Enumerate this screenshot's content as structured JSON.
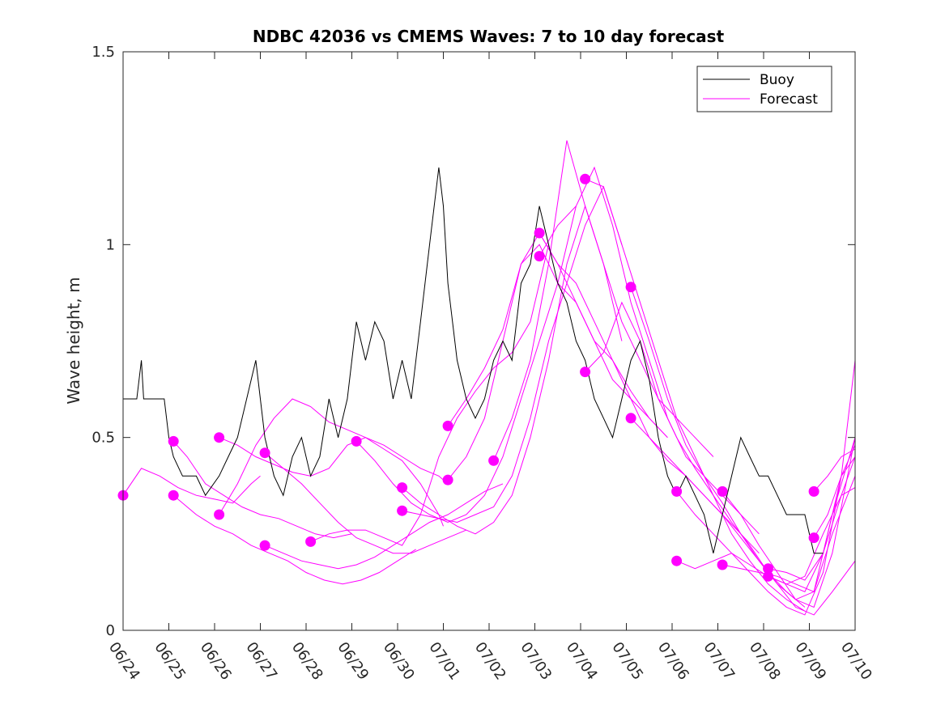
{
  "chart_data": {
    "type": "line",
    "title": "NDBC 42036 vs CMEMS Waves: 7 to 10 day forecast",
    "xlabel": "",
    "ylabel": "Wave height, m",
    "xlim_days": [
      0,
      16
    ],
    "x_tick_labels": [
      "06/24",
      "06/25",
      "06/26",
      "06/27",
      "06/28",
      "06/29",
      "06/30",
      "07/01",
      "07/02",
      "07/03",
      "07/04",
      "07/05",
      "07/06",
      "07/07",
      "07/08",
      "07/09",
      "07/10"
    ],
    "ylim": [
      0,
      1.5
    ],
    "y_ticks": [
      0,
      0.5,
      1,
      1.5
    ],
    "y_tick_labels": [
      "0",
      "0.5",
      "1",
      "1.5"
    ],
    "grid": false,
    "legend_position": "top-right",
    "colors": {
      "buoy": "#000000",
      "forecast": "#ff00ff"
    },
    "legend": [
      {
        "label": "Buoy",
        "color": "#000000"
      },
      {
        "label": "Forecast",
        "color": "#ff00ff"
      }
    ],
    "series": [
      {
        "name": "Buoy",
        "x": [
          0,
          0.3,
          0.4,
          0.45,
          0.6,
          0.75,
          0.9,
          1.0,
          1.1,
          1.3,
          1.4,
          1.6,
          1.8,
          2.1,
          2.3,
          2.5,
          2.7,
          2.9,
          3.1,
          3.3,
          3.5,
          3.7,
          3.9,
          4.1,
          4.3,
          4.5,
          4.7,
          4.9,
          5.1,
          5.3,
          5.5,
          5.7,
          5.9,
          6.1,
          6.3,
          6.5,
          6.7,
          6.9,
          7.0,
          7.1,
          7.3,
          7.5,
          7.7,
          7.9,
          8.1,
          8.3,
          8.5,
          8.7,
          8.9,
          9.1,
          9.3,
          9.5,
          9.7,
          9.9,
          10.1,
          10.3,
          10.5,
          10.7,
          10.9,
          11.1,
          11.3,
          11.5,
          11.7,
          11.9,
          12.1,
          12.3,
          12.5,
          12.7,
          12.9,
          13.1,
          13.3,
          13.5,
          13.7,
          13.9,
          14.1,
          14.3,
          14.5,
          14.7,
          14.9,
          15.1,
          15.3
        ],
        "y": [
          0.6,
          0.6,
          0.7,
          0.6,
          0.6,
          0.6,
          0.6,
          0.5,
          0.45,
          0.4,
          0.4,
          0.4,
          0.35,
          0.4,
          0.45,
          0.5,
          0.6,
          0.7,
          0.5,
          0.4,
          0.35,
          0.45,
          0.5,
          0.4,
          0.45,
          0.6,
          0.5,
          0.6,
          0.8,
          0.7,
          0.8,
          0.75,
          0.6,
          0.7,
          0.6,
          0.8,
          1.0,
          1.2,
          1.1,
          0.9,
          0.7,
          0.6,
          0.55,
          0.6,
          0.7,
          0.75,
          0.7,
          0.9,
          0.95,
          1.1,
          1.0,
          0.9,
          0.85,
          0.75,
          0.7,
          0.6,
          0.55,
          0.5,
          0.6,
          0.7,
          0.75,
          0.65,
          0.5,
          0.4,
          0.35,
          0.4,
          0.35,
          0.3,
          0.2,
          0.3,
          0.4,
          0.5,
          0.45,
          0.4,
          0.4,
          0.35,
          0.3,
          0.3,
          0.3,
          0.2,
          0.2
        ]
      },
      {
        "name": "Forecast",
        "x": [
          0,
          0.4,
          0.8,
          1.2,
          1.6,
          2.0,
          2.4,
          2.8,
          3.0
        ],
        "y": [
          0.35,
          0.42,
          0.4,
          0.37,
          0.35,
          0.34,
          0.33,
          0.38,
          0.4
        ],
        "marker_x": 0,
        "marker_y": 0.35
      },
      {
        "name": "Forecast",
        "x": [
          1.1,
          1.4,
          1.8,
          2.2,
          2.6,
          3.0,
          3.4,
          3.8,
          4.2,
          4.6,
          5.0
        ],
        "y": [
          0.49,
          0.45,
          0.38,
          0.35,
          0.32,
          0.3,
          0.29,
          0.27,
          0.25,
          0.24,
          0.25
        ],
        "marker_x": 1.1,
        "marker_y": 0.49
      },
      {
        "name": "Forecast",
        "x": [
          1.1,
          1.6,
          2.0,
          2.4,
          2.8,
          3.2,
          3.6,
          4.0,
          4.4,
          4.8,
          5.2,
          5.6,
          6.0,
          6.4
        ],
        "y": [
          0.35,
          0.3,
          0.27,
          0.25,
          0.22,
          0.2,
          0.18,
          0.15,
          0.13,
          0.12,
          0.13,
          0.15,
          0.18,
          0.21
        ],
        "marker_x": 1.1,
        "marker_y": 0.35
      },
      {
        "name": "Forecast",
        "x": [
          2.1,
          2.5,
          2.9,
          3.3,
          3.7,
          4.1,
          4.5,
          4.9,
          5.3,
          5.7,
          6.1,
          6.5,
          6.9,
          7.0
        ],
        "y": [
          0.5,
          0.48,
          0.45,
          0.43,
          0.41,
          0.4,
          0.42,
          0.48,
          0.5,
          0.47,
          0.44,
          0.38,
          0.3,
          0.27
        ],
        "marker_x": 2.1,
        "marker_y": 0.5
      },
      {
        "name": "Forecast",
        "x": [
          2.1,
          2.5,
          2.9,
          3.3,
          3.7,
          4.1,
          4.5,
          4.9,
          5.3,
          5.7,
          6.1,
          6.5,
          6.9,
          7.0
        ],
        "y": [
          0.3,
          0.38,
          0.48,
          0.55,
          0.6,
          0.58,
          0.54,
          0.52,
          0.5,
          0.48,
          0.45,
          0.42,
          0.4,
          0.39
        ],
        "marker_x": 2.1,
        "marker_y": 0.3
      },
      {
        "name": "Forecast",
        "x": [
          3.1,
          3.5,
          3.9,
          4.3,
          4.7,
          5.1,
          5.5,
          5.9,
          6.3,
          6.7,
          7.1,
          7.5
        ],
        "y": [
          0.46,
          0.42,
          0.38,
          0.33,
          0.28,
          0.24,
          0.22,
          0.2,
          0.2,
          0.22,
          0.24,
          0.26
        ],
        "marker_x": 3.1,
        "marker_y": 0.46
      },
      {
        "name": "Forecast",
        "x": [
          3.1,
          3.5,
          3.9,
          4.3,
          4.7,
          5.1,
          5.5,
          5.9,
          6.3,
          6.7,
          7.1,
          7.5,
          7.9,
          8.3
        ],
        "y": [
          0.22,
          0.2,
          0.18,
          0.17,
          0.16,
          0.17,
          0.19,
          0.22,
          0.25,
          0.28,
          0.3,
          0.33,
          0.36,
          0.38
        ],
        "marker_x": 3.1,
        "marker_y": 0.22
      },
      {
        "name": "Forecast",
        "x": [
          4.1,
          4.5,
          4.9,
          5.3,
          5.7,
          6.1,
          6.5,
          6.9,
          7.3,
          7.7,
          8.1,
          8.5,
          8.9,
          9.3
        ],
        "y": [
          0.23,
          0.25,
          0.26,
          0.26,
          0.24,
          0.22,
          0.3,
          0.45,
          0.55,
          0.62,
          0.68,
          0.72,
          0.8,
          1.0
        ],
        "marker_x": 4.1,
        "marker_y": 0.23
      },
      {
        "name": "Forecast",
        "x": [
          5.1,
          5.5,
          5.9,
          6.3,
          6.7,
          7.1,
          7.5,
          7.9,
          8.3,
          8.7,
          9.1,
          9.5,
          9.9
        ],
        "y": [
          0.49,
          0.44,
          0.38,
          0.33,
          0.3,
          0.28,
          0.3,
          0.35,
          0.45,
          0.6,
          0.75,
          0.9,
          1.1
        ],
        "marker_x": 5.1,
        "marker_y": 0.49
      },
      {
        "name": "Forecast",
        "x": [
          6.1,
          6.5,
          6.9,
          7.3,
          7.7,
          8.1,
          8.5,
          8.9,
          9.3,
          9.7,
          10.1,
          10.5,
          10.9
        ],
        "y": [
          0.37,
          0.33,
          0.3,
          0.27,
          0.25,
          0.28,
          0.35,
          0.5,
          0.7,
          0.95,
          1.1,
          0.95,
          0.75
        ],
        "marker_x": 6.1,
        "marker_y": 0.37
      },
      {
        "name": "Forecast",
        "x": [
          6.1,
          6.5,
          6.9,
          7.3,
          7.7,
          8.1,
          8.5,
          8.9,
          9.3,
          9.7,
          10.1,
          10.5,
          10.9
        ],
        "y": [
          0.31,
          0.3,
          0.29,
          0.28,
          0.3,
          0.32,
          0.4,
          0.55,
          0.75,
          0.9,
          1.05,
          1.15,
          1.0
        ],
        "marker_x": 6.1,
        "marker_y": 0.31
      },
      {
        "name": "Forecast",
        "x": [
          7.1,
          7.5,
          7.9,
          8.3,
          8.7,
          9.1,
          9.5,
          9.9,
          10.3,
          10.7,
          11.1,
          11.5,
          11.9
        ],
        "y": [
          0.53,
          0.6,
          0.68,
          0.78,
          0.95,
          1.0,
          0.9,
          0.85,
          0.75,
          0.65,
          0.6,
          0.55,
          0.5
        ],
        "marker_x": 7.1,
        "marker_y": 0.53
      },
      {
        "name": "Forecast",
        "x": [
          7.1,
          7.5,
          7.9,
          8.3,
          8.7,
          9.1,
          9.5,
          9.9,
          10.3,
          10.7,
          11.1,
          11.5,
          11.9
        ],
        "y": [
          0.39,
          0.45,
          0.55,
          0.75,
          0.95,
          1.03,
          0.95,
          0.85,
          0.75,
          0.7,
          0.62,
          0.55,
          0.5
        ],
        "marker_x": 7.1,
        "marker_y": 0.39
      },
      {
        "name": "Forecast",
        "x": [
          8.1,
          8.5,
          8.9,
          9.3,
          9.7,
          10.1,
          10.5,
          10.9,
          11.3,
          11.7,
          12.1,
          12.5,
          12.9
        ],
        "y": [
          0.44,
          0.55,
          0.7,
          0.95,
          1.27,
          1.1,
          0.95,
          0.8,
          0.7,
          0.6,
          0.55,
          0.5,
          0.45
        ],
        "marker_x": 8.1,
        "marker_y": 0.44
      },
      {
        "name": "Forecast",
        "x": [
          9.1,
          9.5,
          9.9,
          10.3,
          10.7,
          11.1,
          11.5,
          11.9,
          12.3,
          12.7,
          13.1,
          13.5,
          13.9
        ],
        "y": [
          1.03,
          0.95,
          0.9,
          0.8,
          0.7,
          0.6,
          0.5,
          0.45,
          0.4,
          0.35,
          0.3,
          0.25,
          0.2
        ],
        "marker_x": 9.1,
        "marker_y": 1.03
      },
      {
        "name": "Forecast",
        "x": [
          9.1,
          9.5,
          9.9,
          10.3,
          10.7,
          11.1,
          11.5,
          11.9,
          12.3,
          12.7,
          13.1,
          13.5,
          13.9
        ],
        "y": [
          0.97,
          1.05,
          1.1,
          1.2,
          1.05,
          0.85,
          0.7,
          0.55,
          0.45,
          0.4,
          0.35,
          0.3,
          0.25
        ],
        "marker_x": 9.1,
        "marker_y": 0.97
      },
      {
        "name": "Forecast",
        "x": [
          10.1,
          10.5,
          10.9,
          11.3,
          11.7,
          12.1,
          12.5,
          12.9,
          13.3,
          13.7,
          14.1,
          14.5,
          14.9
        ],
        "y": [
          1.17,
          1.15,
          1.0,
          0.85,
          0.7,
          0.55,
          0.45,
          0.35,
          0.25,
          0.18,
          0.12,
          0.08,
          0.05
        ],
        "marker_x": 10.1,
        "marker_y": 1.17
      },
      {
        "name": "Forecast",
        "x": [
          10.1,
          10.5,
          10.9,
          11.3,
          11.7,
          12.1,
          12.5,
          12.9,
          13.3,
          13.7,
          14.1,
          14.5,
          14.9
        ],
        "y": [
          0.67,
          0.72,
          0.85,
          0.75,
          0.6,
          0.5,
          0.42,
          0.35,
          0.28,
          0.22,
          0.15,
          0.1,
          0.06
        ],
        "marker_x": 10.1,
        "marker_y": 0.67
      },
      {
        "name": "Forecast",
        "x": [
          11.1,
          11.5,
          11.9,
          12.3,
          12.7,
          13.1,
          13.5,
          13.9,
          14.3,
          14.7,
          15.1,
          15.5,
          16.0
        ],
        "y": [
          0.89,
          0.75,
          0.6,
          0.48,
          0.4,
          0.33,
          0.25,
          0.18,
          0.12,
          0.08,
          0.1,
          0.3,
          0.5
        ],
        "marker_x": 11.1,
        "marker_y": 0.89
      },
      {
        "name": "Forecast",
        "x": [
          11.1,
          11.5,
          11.9,
          12.3,
          12.7,
          13.1,
          13.5,
          13.9,
          14.3,
          14.7,
          15.1,
          15.5,
          16.0
        ],
        "y": [
          0.55,
          0.5,
          0.44,
          0.4,
          0.35,
          0.3,
          0.24,
          0.18,
          0.12,
          0.06,
          0.04,
          0.1,
          0.18
        ],
        "marker_x": 11.1,
        "marker_y": 0.55
      },
      {
        "name": "Forecast",
        "x": [
          12.1,
          12.5,
          12.9,
          13.3,
          13.7,
          14.1,
          14.5,
          14.9,
          15.3,
          15.7,
          16.0
        ],
        "y": [
          0.36,
          0.3,
          0.25,
          0.2,
          0.15,
          0.1,
          0.06,
          0.04,
          0.15,
          0.4,
          0.7
        ],
        "marker_x": 12.1,
        "marker_y": 0.36
      },
      {
        "name": "Forecast",
        "x": [
          12.1,
          12.5,
          12.9,
          13.3,
          13.7,
          14.1,
          14.5,
          14.9,
          15.3,
          15.7,
          16.0
        ],
        "y": [
          0.18,
          0.16,
          0.18,
          0.2,
          0.17,
          0.14,
          0.12,
          0.14,
          0.25,
          0.35,
          0.45
        ],
        "marker_x": 12.1,
        "marker_y": 0.18
      },
      {
        "name": "Forecast",
        "x": [
          13.1,
          13.5,
          13.9,
          14.3,
          14.7,
          15.1,
          15.5,
          16.0
        ],
        "y": [
          0.36,
          0.3,
          0.22,
          0.15,
          0.08,
          0.06,
          0.2,
          0.5
        ],
        "marker_x": 13.1,
        "marker_y": 0.36
      },
      {
        "name": "Forecast",
        "x": [
          13.1,
          13.5,
          13.9,
          14.3,
          14.7,
          15.1,
          15.5,
          16.0
        ],
        "y": [
          0.17,
          0.16,
          0.15,
          0.14,
          0.12,
          0.1,
          0.25,
          0.4
        ],
        "marker_x": 13.1,
        "marker_y": 0.17
      },
      {
        "name": "Forecast",
        "x": [
          14.1,
          14.5,
          14.9,
          15.3,
          15.7,
          16.0
        ],
        "y": [
          0.16,
          0.15,
          0.13,
          0.2,
          0.35,
          0.37
        ],
        "marker_x": 14.1,
        "marker_y": 0.16
      },
      {
        "name": "Forecast",
        "x": [
          14.1,
          14.5,
          14.9,
          15.3,
          15.7,
          16.0
        ],
        "y": [
          0.14,
          0.12,
          0.1,
          0.2,
          0.4,
          0.48
        ],
        "marker_x": 14.1,
        "marker_y": 0.14
      },
      {
        "name": "Forecast",
        "x": [
          15.1,
          15.4,
          15.7,
          16.0
        ],
        "y": [
          0.36,
          0.4,
          0.45,
          0.47
        ],
        "marker_x": 15.1,
        "marker_y": 0.36
      },
      {
        "name": "Forecast",
        "x": [
          15.1,
          15.4,
          15.7,
          16.0
        ],
        "y": [
          0.24,
          0.3,
          0.4,
          0.45
        ],
        "marker_x": 15.1,
        "marker_y": 0.24
      }
    ]
  }
}
